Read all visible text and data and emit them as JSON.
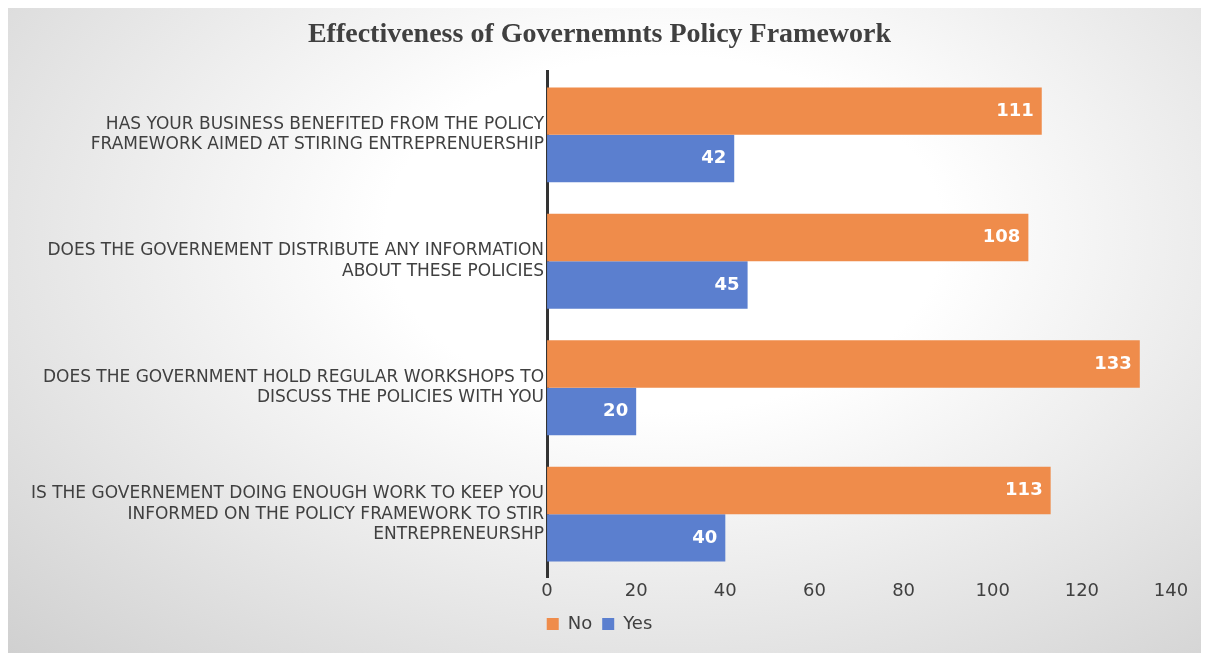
{
  "chart_data": {
    "type": "bar",
    "orientation": "horizontal",
    "title": "Effectiveness of Governemnts Policy Framework",
    "categories": [
      "HAS YOUR BUSINESS BENEFITED FROM THE POLICY FRAMEWORK AIMED AT STIRING ENTREPRENUERSHIP",
      "DOES THE GOVERNEMENT DISTRIBUTE ANY INFORMATION ABOUT THESE POLICIES",
      "DOES THE GOVERNMENT HOLD REGULAR WORKSHOPS TO DISCUSS THE POLICIES WITH YOU",
      "IS THE GOVERNEMENT DOING ENOUGH WORK TO KEEP YOU INFORMED ON THE POLICY FRAMEWORK TO STIR ENTREPRENEURSHP"
    ],
    "series": [
      {
        "name": "No",
        "color": "#ef8c4b",
        "values": [
          111,
          108,
          133,
          113
        ]
      },
      {
        "name": "Yes",
        "color": "#5b7fcf",
        "values": [
          42,
          45,
          20,
          40
        ]
      }
    ],
    "xlim": [
      0,
      140
    ],
    "xticks": [
      0,
      20,
      40,
      60,
      80,
      100,
      120,
      140
    ],
    "grid": false,
    "legend": "bottom",
    "data_labels": true
  }
}
